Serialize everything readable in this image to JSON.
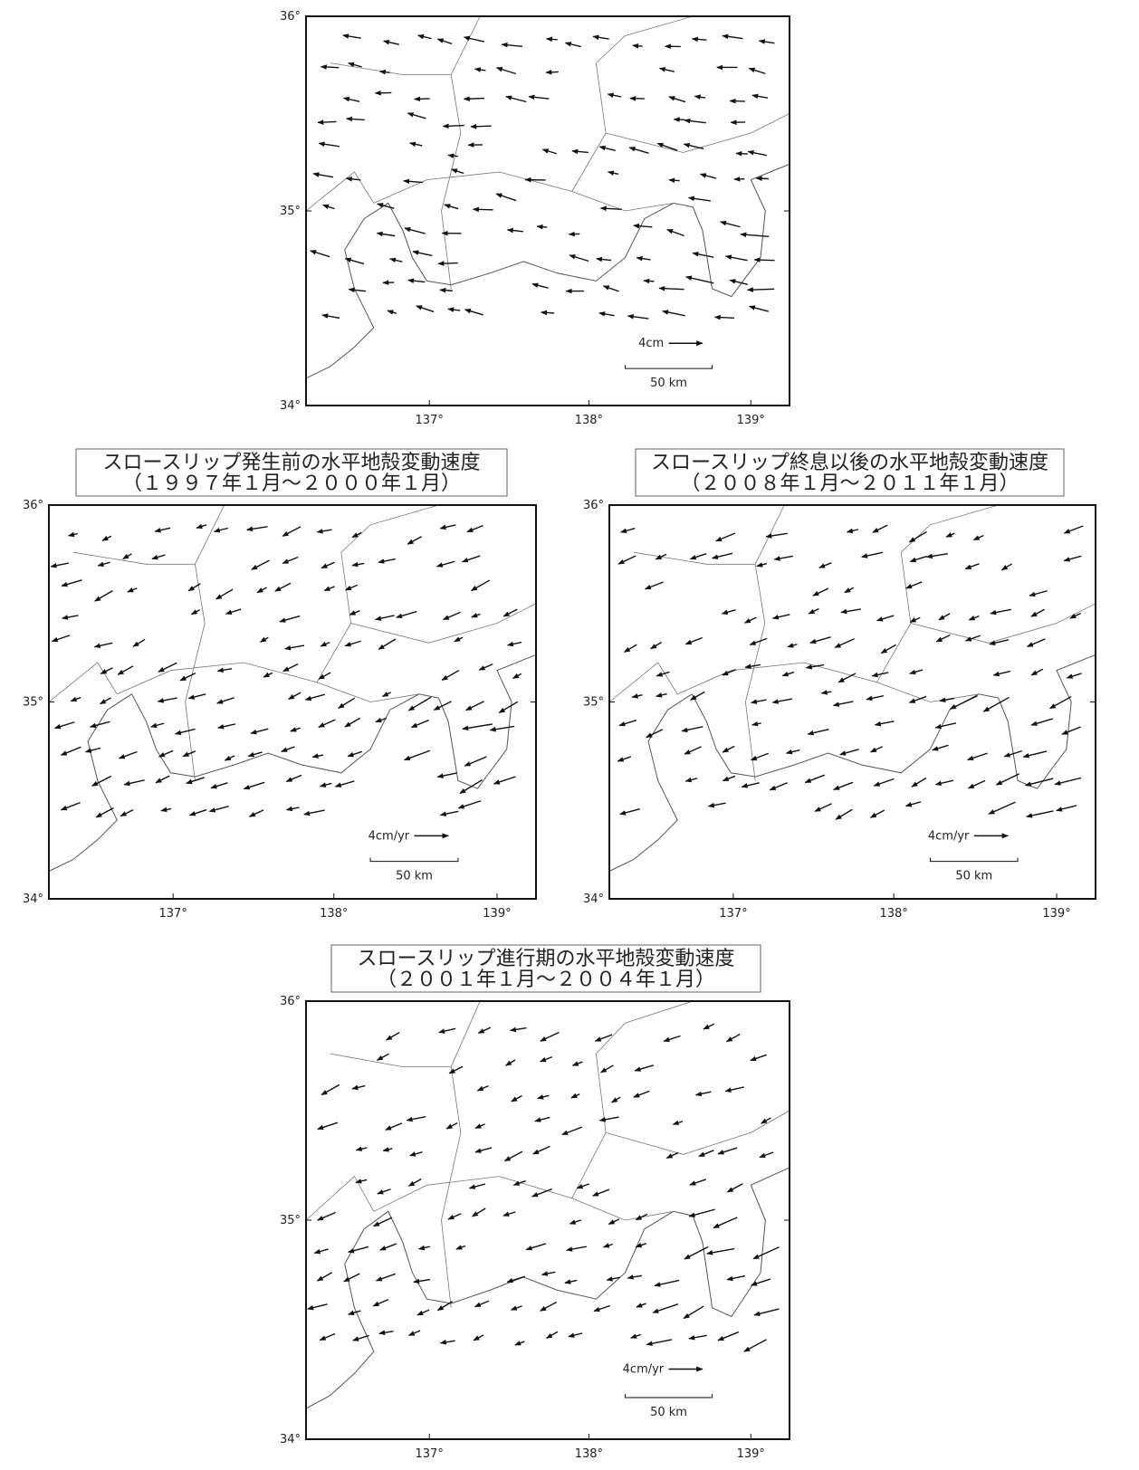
{
  "panels": [
    {
      "latitude_labels": [
        "36°",
        "35°",
        "34°"
      ],
      "longitude_labels": [
        "137°",
        "138°",
        "139°"
      ],
      "vector_scale": "4cm",
      "distance_scale": "50 km"
    },
    {
      "title": [
        "スロースリップ発生前の水平地殻変動速度",
        "（１９９７年１月～２０００年１月）"
      ],
      "latitude_labels": [
        "36°",
        "35°",
        "34°"
      ],
      "longitude_labels": [
        "137°",
        "138°",
        "139°"
      ],
      "vector_scale": "4cm/yr",
      "distance_scale": "50 km"
    },
    {
      "title": [
        "スロースリップ終息以後の水平地殻変動速度",
        "（２００８年１月～２０１１年１月）"
      ],
      "latitude_labels": [
        "36°",
        "35°",
        "34°"
      ],
      "longitude_labels": [
        "137°",
        "138°",
        "139°"
      ],
      "vector_scale": "4cm/yr",
      "distance_scale": "50 km"
    },
    {
      "title": [
        "スロースリップ進行期の水平地殻変動速度",
        "（２００１年１月～２００４年１月）"
      ],
      "latitude_labels": [
        "36°",
        "35°",
        "34°"
      ],
      "longitude_labels": [
        "137°",
        "138°",
        "139°"
      ],
      "vector_scale": "4cm/yr",
      "distance_scale": "50 km"
    }
  ]
}
